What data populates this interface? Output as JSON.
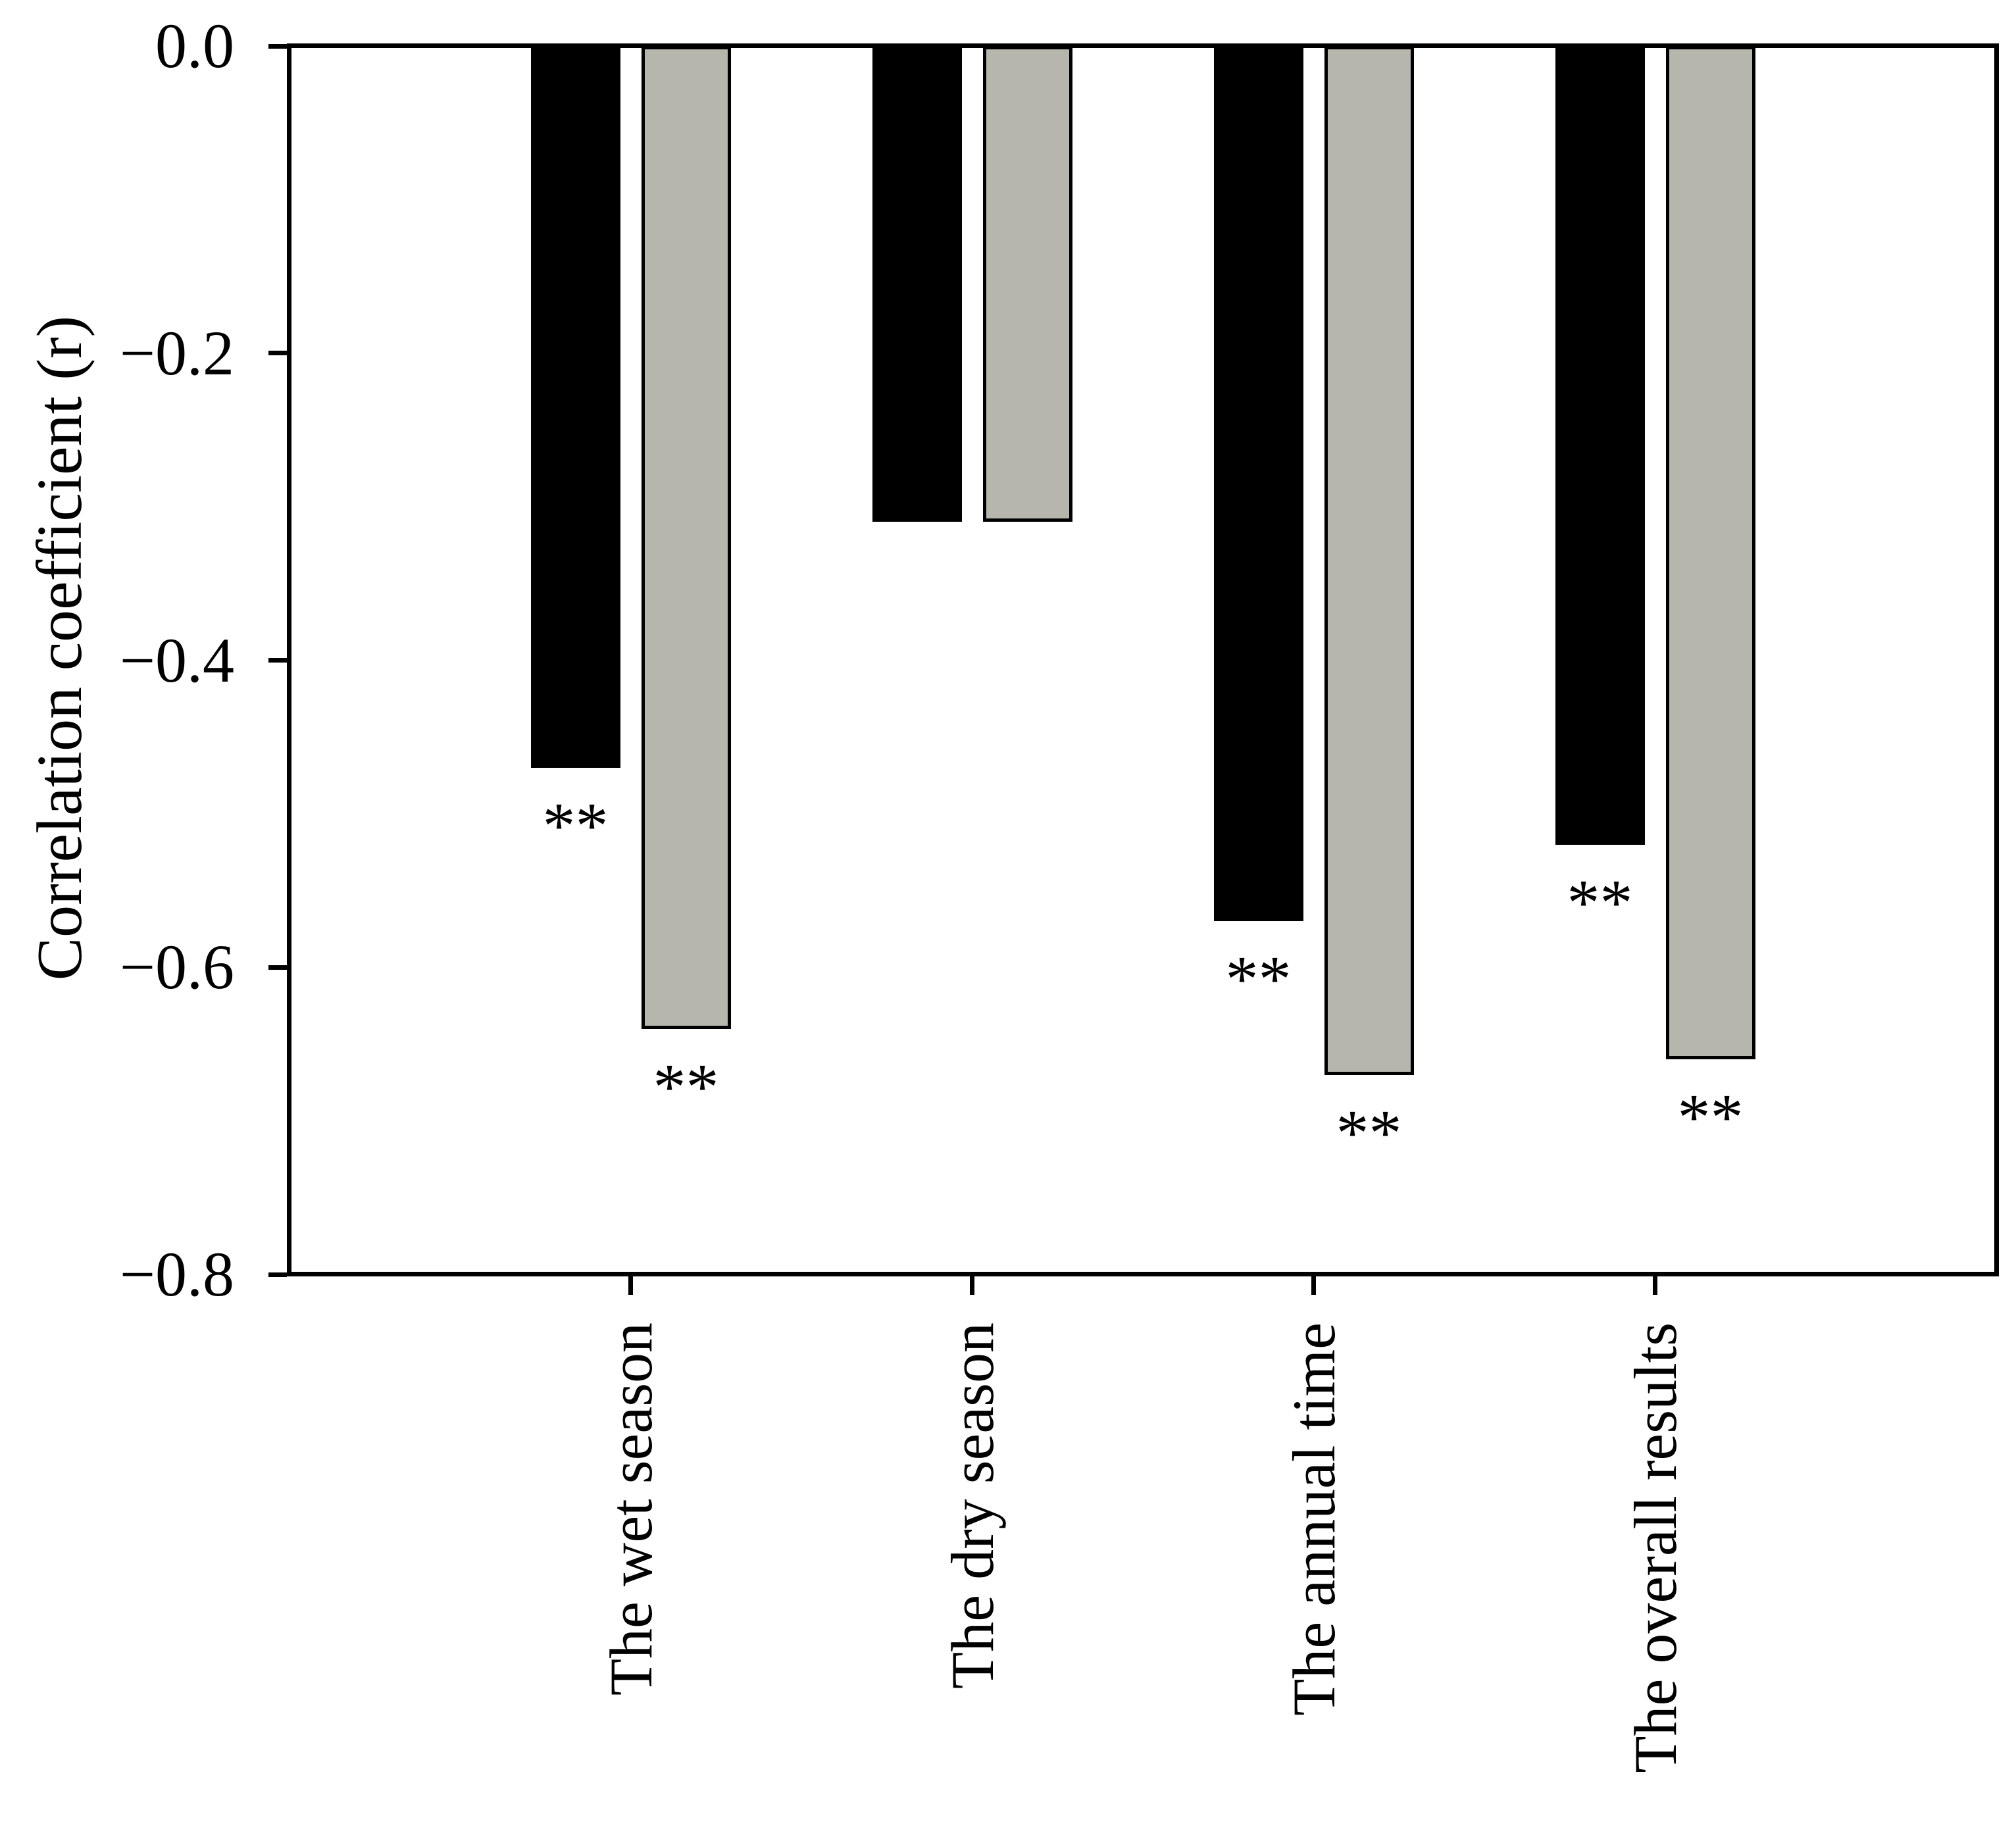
{
  "chart_data": {
    "type": "bar",
    "title": "",
    "xlabel": "",
    "ylabel": "Correlation coefficient (r)",
    "ylim": [
      0,
      -0.8
    ],
    "grid": false,
    "legend": "none",
    "bar_fill_colors": {
      "black_series": "#000000",
      "gray_series": "#b6b6ac"
    },
    "bar_outline_color": "#000000",
    "yticks": [
      {
        "value": 0.0,
        "label": "0.0"
      },
      {
        "value": -0.2,
        "label": "−0.2"
      },
      {
        "value": -0.4,
        "label": "−0.4"
      },
      {
        "value": -0.6,
        "label": "−0.6"
      },
      {
        "value": -0.8,
        "label": "−0.8"
      }
    ],
    "categories": [
      "The wet season",
      "The dry season",
      "The annual time",
      "The overall results"
    ],
    "series": [
      {
        "name": "black-series",
        "color": "#000000",
        "values": [
          -0.47,
          -0.31,
          -0.57,
          -0.52
        ],
        "significance": [
          "**",
          "",
          "**",
          "**"
        ]
      },
      {
        "name": "gray-series",
        "color": "#b6b6ac",
        "values": [
          -0.64,
          -0.31,
          -0.67,
          -0.66
        ],
        "significance": [
          "**",
          "",
          "**",
          "**"
        ]
      }
    ],
    "significance_marker": "**"
  }
}
